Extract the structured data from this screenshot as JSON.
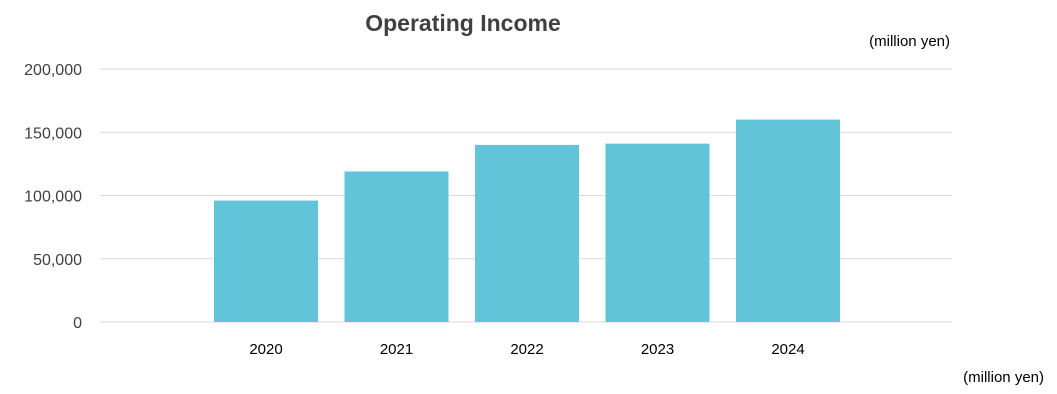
{
  "chart_data": {
    "type": "bar",
    "title": "Operating Income",
    "unit_label_top": "(million yen)",
    "unit_label_bottom": "(million yen)",
    "categories": [
      "2020",
      "2021",
      "2022",
      "2023",
      "2024"
    ],
    "values": [
      96000,
      119000,
      140000,
      141000,
      160000
    ],
    "ylim": [
      0,
      200000
    ],
    "yticks": [
      0,
      50000,
      100000,
      150000,
      200000
    ],
    "ytick_labels": [
      "0",
      "50,000",
      "100,000",
      "150,000",
      "200,000"
    ],
    "xlabel": "",
    "ylabel": "",
    "grid": true,
    "legend": "none",
    "colors": {
      "bar": "#62c4d9",
      "grid": "#d9d9d9",
      "text": "#404040",
      "title": "#404040"
    }
  }
}
